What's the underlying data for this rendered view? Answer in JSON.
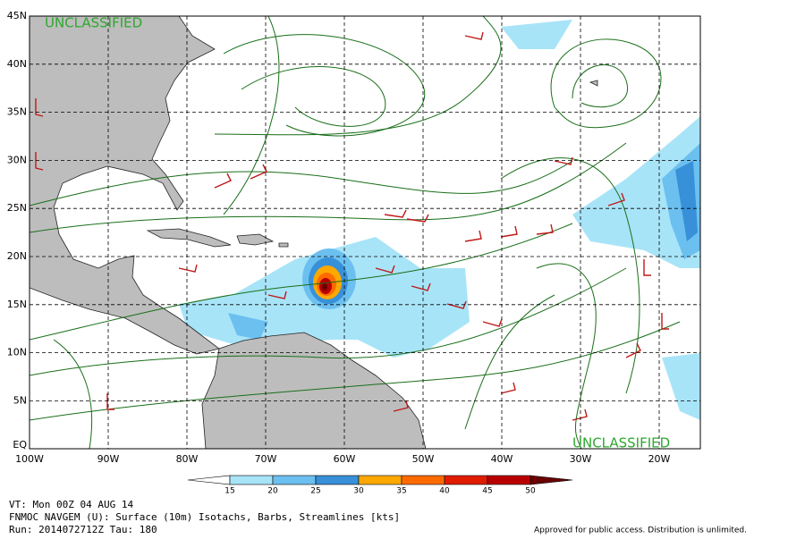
{
  "map": {
    "classification_top": "UNCLASSIFIED",
    "classification_bottom": "UNCLASSIFIED",
    "lon_labels": [
      "100W",
      "90W",
      "80W",
      "70W",
      "60W",
      "50W",
      "40W",
      "30W",
      "20W"
    ],
    "lat_labels": [
      "45N",
      "40N",
      "35N",
      "30N",
      "25N",
      "20N",
      "15N",
      "10N",
      "5N",
      "EQ"
    ],
    "colorbar": {
      "labels": [
        "15",
        "20",
        "25",
        "30",
        "35",
        "40",
        "45",
        "50"
      ],
      "colors": [
        "#ffffff",
        "#a8e4f8",
        "#6cc0f0",
        "#3890d8",
        "#ffa800",
        "#ff6a00",
        "#e01c00",
        "#b80000",
        "#6a0000"
      ]
    }
  },
  "footer": {
    "valid_time": "VT: Mon 00Z 04 AUG 14",
    "product": "FNMOC NAVGEM (U): Surface (10m) Isotachs, Barbs, Streamlines [kts]",
    "run": "Run: 2014072712Z Tau: 180",
    "release": "Approved for public access. Distribution is unlimited."
  }
}
